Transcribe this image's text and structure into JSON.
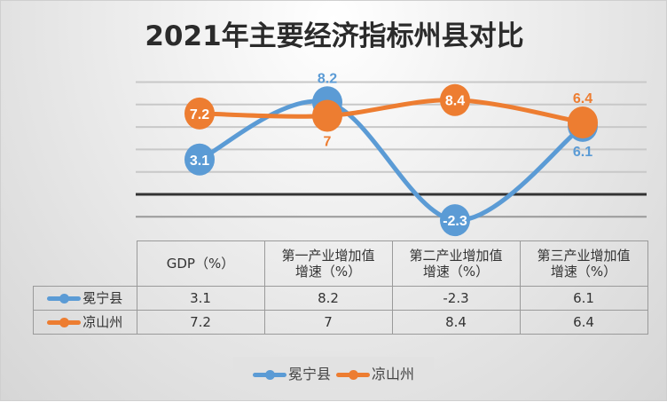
{
  "chart_data": {
    "type": "line",
    "title": "2021年主要经济指标州县对比",
    "categories": [
      "GDP（%）",
      "第一产业增加值增速（%）",
      "第二产业增加值增速（%）",
      "第三产业增加值增速（%）"
    ],
    "series": [
      {
        "name": "冕宁县",
        "values": [
          3.1,
          8.2,
          -2.3,
          6.1
        ],
        "labels": [
          "3.1",
          "8.2",
          "-2.3",
          "6.1"
        ],
        "color": "#5b9bd5"
      },
      {
        "name": "凉山州",
        "values": [
          7.2,
          7,
          8.4,
          6.4
        ],
        "labels": [
          "7.2",
          "7",
          "8.4",
          "6.4"
        ],
        "color": "#ed7d31"
      }
    ],
    "ylim": [
      -4,
      10
    ],
    "gridlines": [
      -2,
      0,
      2,
      4,
      6,
      8,
      10
    ],
    "smooth": true,
    "legend": "bottom",
    "data_table": true
  },
  "table": {
    "headers": [
      [
        "GDP（%）",
        ""
      ],
      [
        "第一产业增加值",
        "增速（%）"
      ],
      [
        "第二产业增加值",
        "增速（%）"
      ],
      [
        "第三产业增加值",
        "增速（%）"
      ]
    ]
  }
}
